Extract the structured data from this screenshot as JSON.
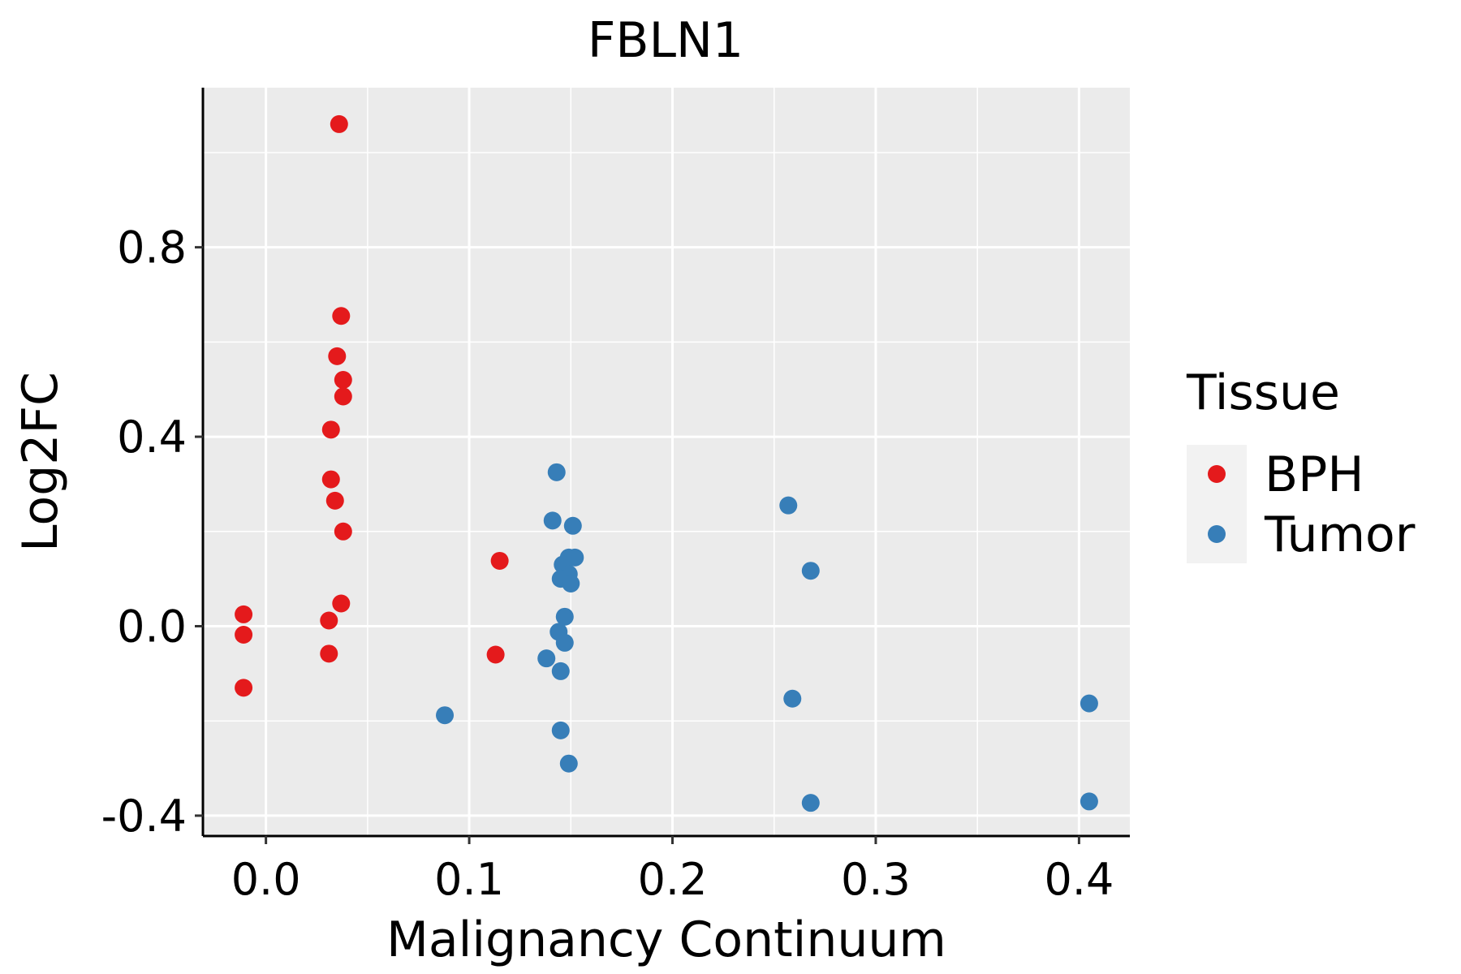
{
  "chart_data": {
    "type": "scatter",
    "title": "FBLN1",
    "xlabel": "Malignancy Continuum",
    "ylabel": "Log2FC",
    "xlim": [
      -0.031,
      0.425
    ],
    "ylim": [
      -0.443,
      1.137
    ],
    "x_ticks": [
      0.0,
      0.1,
      0.2,
      0.3,
      0.4
    ],
    "x_tick_labels": [
      "0.0",
      "0.1",
      "0.2",
      "0.3",
      "0.4"
    ],
    "y_ticks": [
      -0.4,
      0.0,
      0.4,
      0.8
    ],
    "y_tick_labels": [
      "-0.4",
      "0.0",
      "0.4",
      "0.8"
    ],
    "grid": true,
    "legend": {
      "title": "Tissue",
      "position": "right",
      "entries": [
        "BPH",
        "Tumor"
      ]
    },
    "series": [
      {
        "name": "BPH",
        "color": "#e41a1c",
        "points": [
          [
            0.036,
            1.06
          ],
          [
            0.037,
            0.655
          ],
          [
            0.035,
            0.57
          ],
          [
            0.038,
            0.52
          ],
          [
            0.038,
            0.485
          ],
          [
            0.032,
            0.415
          ],
          [
            0.032,
            0.31
          ],
          [
            0.034,
            0.265
          ],
          [
            0.038,
            0.2
          ],
          [
            0.037,
            0.048
          ],
          [
            0.031,
            0.012
          ],
          [
            0.031,
            -0.058
          ],
          [
            -0.011,
            0.025
          ],
          [
            -0.011,
            -0.018
          ],
          [
            -0.011,
            -0.13
          ],
          [
            0.115,
            0.138
          ],
          [
            0.113,
            -0.06
          ]
        ]
      },
      {
        "name": "Tumor",
        "color": "#377eb8",
        "points": [
          [
            0.143,
            0.325
          ],
          [
            0.141,
            0.223
          ],
          [
            0.151,
            0.212
          ],
          [
            0.149,
            0.145
          ],
          [
            0.152,
            0.145
          ],
          [
            0.146,
            0.13
          ],
          [
            0.149,
            0.11
          ],
          [
            0.145,
            0.1
          ],
          [
            0.15,
            0.09
          ],
          [
            0.147,
            0.02
          ],
          [
            0.144,
            -0.012
          ],
          [
            0.147,
            -0.035
          ],
          [
            0.138,
            -0.068
          ],
          [
            0.145,
            -0.095
          ],
          [
            0.088,
            -0.188
          ],
          [
            0.145,
            -0.22
          ],
          [
            0.149,
            -0.29
          ],
          [
            0.257,
            0.255
          ],
          [
            0.268,
            0.117
          ],
          [
            0.259,
            -0.153
          ],
          [
            0.268,
            -0.373
          ],
          [
            0.405,
            -0.163
          ],
          [
            0.405,
            -0.37
          ]
        ]
      }
    ]
  }
}
